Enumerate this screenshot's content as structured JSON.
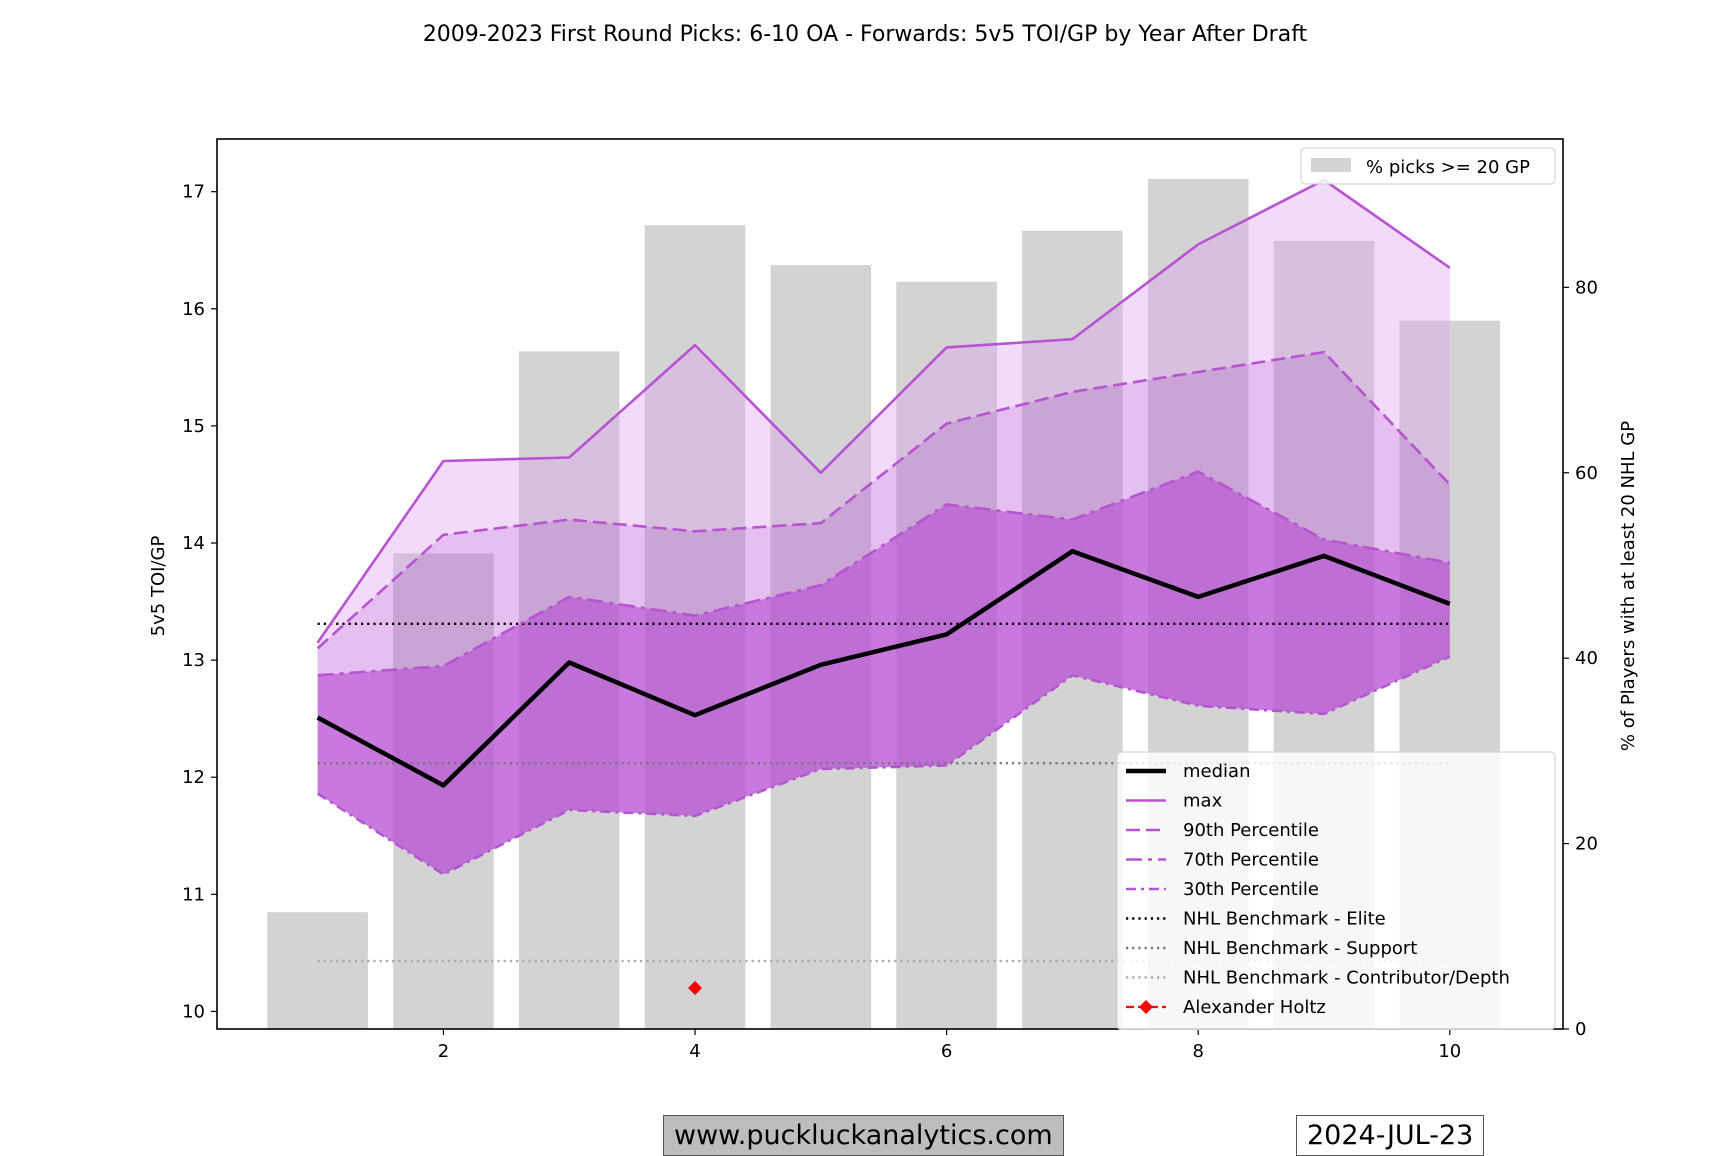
{
  "chart_data": {
    "type": "line",
    "title": "2009-2023 First Round Picks: 6-10 OA - Forwards: 5v5 TOI/GP by Year After Draft",
    "ylabel": "5v5 TOI/GP",
    "y2label": "% of Players with at least 20 NHL GP",
    "ylim": [
      9.85,
      17.45
    ],
    "y2lim": [
      0,
      96
    ],
    "xlim": [
      0.2,
      10.9
    ],
    "xticks": [
      2,
      4,
      6,
      8,
      10
    ],
    "yticks": [
      10,
      11,
      12,
      13,
      14,
      15,
      16,
      17
    ],
    "y2ticks": [
      0,
      20,
      40,
      60,
      80
    ],
    "x": [
      1,
      2,
      3,
      4,
      5,
      6,
      7,
      8,
      9,
      10
    ],
    "bars": {
      "name": "% picks >= 20 GP",
      "values": [
        12.6,
        51.3,
        73.1,
        86.7,
        82.4,
        80.6,
        86.1,
        91.7,
        85.0,
        76.4
      ],
      "color": "#d3d3d3"
    },
    "series": [
      {
        "name": "median",
        "values": [
          12.51,
          11.93,
          12.98,
          12.53,
          12.96,
          13.22,
          13.93,
          13.54,
          13.89,
          13.48
        ],
        "color": "#000000",
        "style": "solid"
      },
      {
        "name": "max",
        "values": [
          13.15,
          14.7,
          14.73,
          15.69,
          14.6,
          15.67,
          15.74,
          16.55,
          17.1,
          16.35
        ],
        "color": "#b853d4",
        "style": "solid"
      },
      {
        "name": "90th Percentile",
        "values": [
          13.1,
          14.07,
          14.2,
          14.1,
          14.17,
          15.02,
          15.29,
          15.46,
          15.63,
          14.5
        ],
        "color": "#b853d4",
        "style": "dashed"
      },
      {
        "name": "70th Percentile",
        "values": [
          12.87,
          12.95,
          13.54,
          13.38,
          13.64,
          14.33,
          14.2,
          14.61,
          14.03,
          13.83
        ],
        "color": "#b853d4",
        "style": "dashdot"
      },
      {
        "name": "30th Percentile",
        "values": [
          11.86,
          11.17,
          11.72,
          11.67,
          12.07,
          12.1,
          12.87,
          12.61,
          12.54,
          13.03
        ],
        "color": "#b853d4",
        "style": "dashdot2"
      },
      {
        "name": "NHL Benchmark - Elite",
        "values": [
          13.31,
          13.31,
          13.31,
          13.31,
          13.31,
          13.31,
          13.31,
          13.31,
          13.31,
          13.31
        ],
        "color": "#000000",
        "style": "dotted"
      },
      {
        "name": "NHL Benchmark - Support",
        "values": [
          12.12,
          12.12,
          12.12,
          12.12,
          12.12,
          12.12,
          12.12,
          12.12,
          12.12,
          12.12
        ],
        "color": "#777777",
        "style": "dotted"
      },
      {
        "name": "NHL Benchmark - Contributor/Depth",
        "values": [
          10.43,
          10.43,
          10.43,
          10.43,
          10.43,
          10.43,
          10.43,
          10.43,
          10.43,
          10.43
        ],
        "color": "#aaaaaa",
        "style": "dotted"
      }
    ],
    "player": {
      "name": "Alexander Holtz",
      "x": [
        4
      ],
      "values": [
        10.2
      ],
      "color": "#ff0000"
    },
    "legend_top": "top-right",
    "legend_main": "lower-right",
    "grid": false
  },
  "footer": {
    "website": "www.puckluckanalytics.com",
    "date": "2024-JUL-23"
  }
}
